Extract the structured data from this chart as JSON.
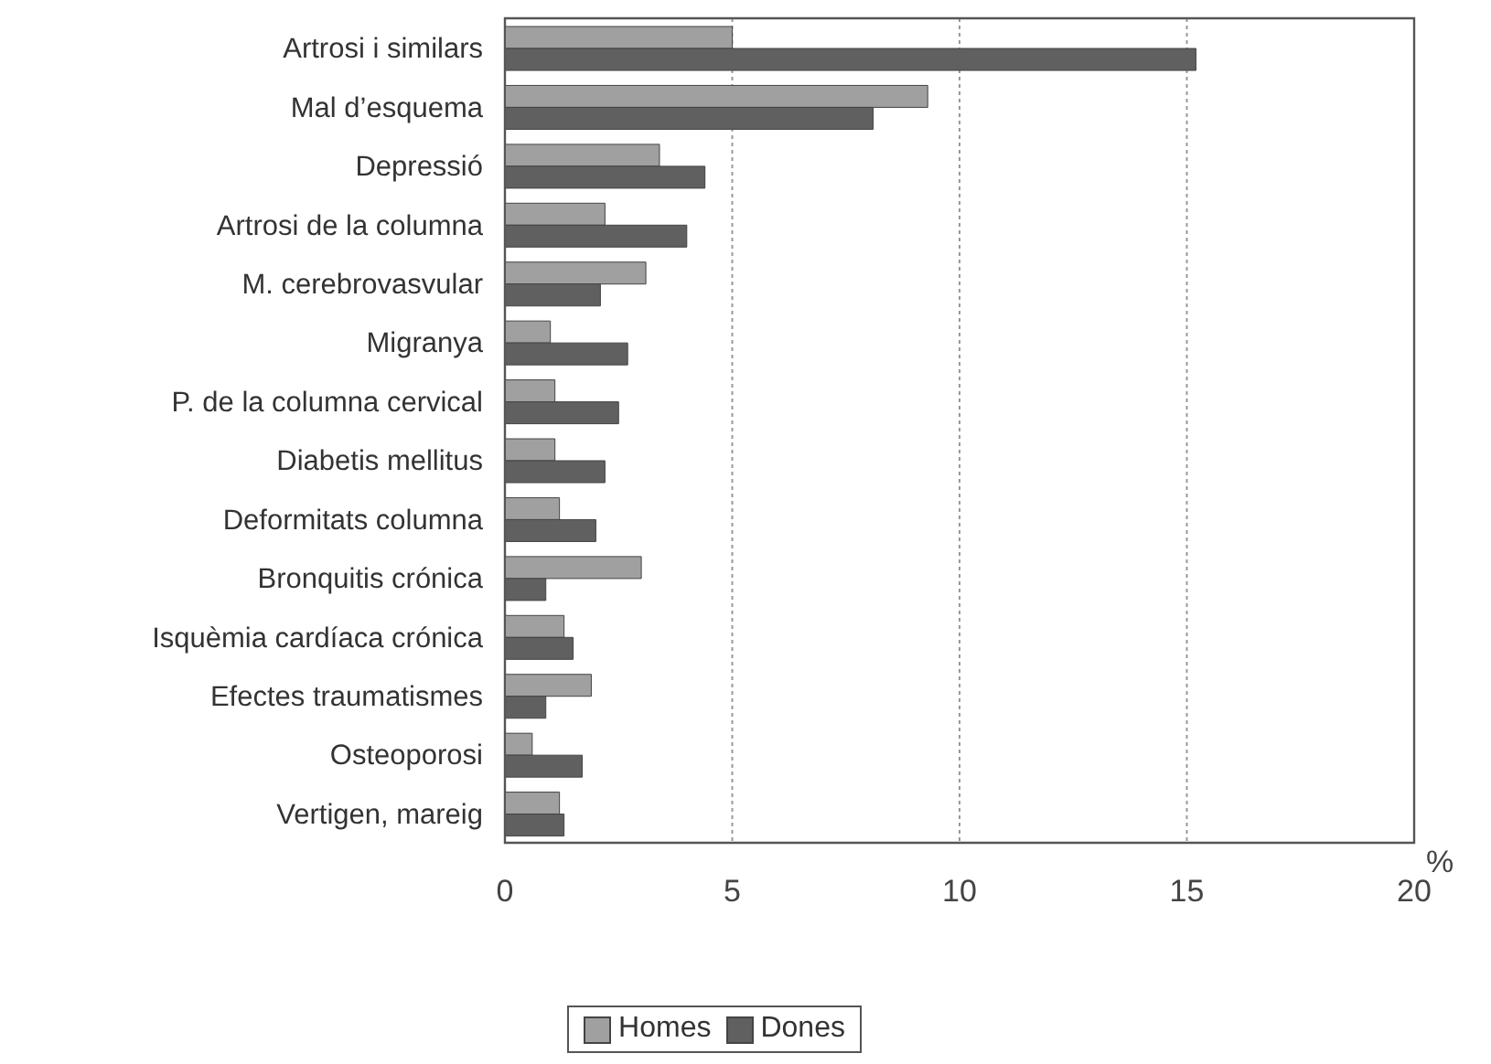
{
  "chart_data": {
    "type": "bar",
    "orientation": "horizontal",
    "xlabel": "%",
    "categories": [
      "Artrosi i similars",
      "Mal d’esquema",
      "Depressió",
      "Artrosi de la columna",
      "M. cerebrovasvular",
      "Migranya",
      "P. de la columna cervical",
      "Diabetis mellitus",
      "Deformitats columna",
      "Bronquitis crónica",
      "Isquèmia cardíaca crónica",
      "Efectes traumatismes",
      "Osteoporosi",
      "Vertigen, mareig"
    ],
    "series": [
      {
        "name": "Homes",
        "color": "#a0a0a0",
        "values": [
          5.0,
          9.3,
          3.4,
          2.2,
          3.1,
          1.0,
          1.1,
          1.1,
          1.2,
          3.0,
          1.3,
          1.9,
          0.6,
          1.2
        ]
      },
      {
        "name": "Dones",
        "color": "#606060",
        "values": [
          15.2,
          8.1,
          4.4,
          4.0,
          2.1,
          2.7,
          2.5,
          2.2,
          2.0,
          0.9,
          1.5,
          0.9,
          1.7,
          1.3
        ]
      }
    ],
    "xlim": [
      0,
      20
    ],
    "xticks": [
      0,
      5,
      10,
      15,
      20
    ],
    "grid": "x",
    "legend": "bottom"
  }
}
